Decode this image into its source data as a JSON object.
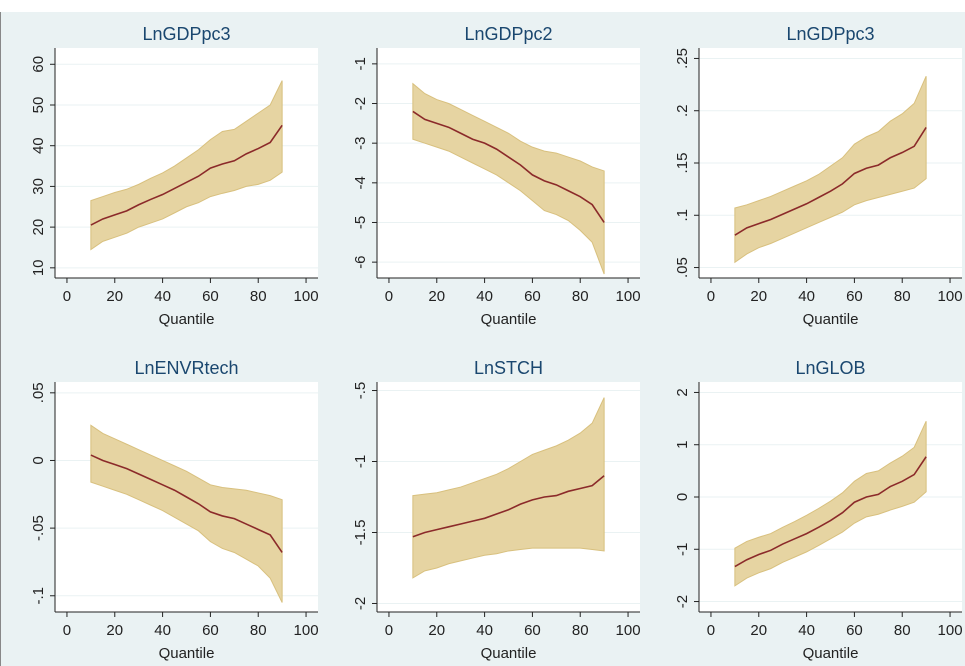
{
  "chart_data": [
    {
      "type": "band-line",
      "title": "LnGDPpc3",
      "xlabel": "Quantile",
      "x": [
        10,
        15,
        20,
        25,
        30,
        35,
        40,
        45,
        50,
        55,
        60,
        65,
        70,
        75,
        80,
        85,
        90
      ],
      "series": [
        {
          "color": "#8b2a2a",
          "values": [
            20.5,
            22,
            23,
            24,
            25.5,
            26.8,
            28,
            29.5,
            31,
            32.5,
            34.5,
            35.5,
            36.3,
            38,
            39.3,
            40.8,
            45
          ]
        }
      ],
      "band": {
        "color": "#e6d4a2",
        "upper": [
          26.5,
          27.5,
          28.5,
          29.3,
          30.5,
          32,
          33.3,
          35,
          37,
          39,
          41.5,
          43.5,
          44,
          46,
          48,
          50,
          56
        ],
        "lower": [
          14.5,
          16.5,
          17.5,
          18.5,
          20,
          21,
          22,
          23.5,
          25,
          26,
          27.5,
          28.3,
          29,
          30,
          30.5,
          31.5,
          33.5
        ]
      },
      "xlim": [
        -5,
        105
      ],
      "xticks": [
        0,
        20,
        40,
        60,
        80,
        100
      ],
      "ylim": [
        7.5,
        64
      ],
      "yticks": [
        10,
        20,
        30,
        40,
        50,
        60
      ],
      "grid": true
    },
    {
      "type": "band-line",
      "title": "LnGDPpc2",
      "xlabel": "Quantile",
      "x": [
        10,
        15,
        20,
        25,
        30,
        35,
        40,
        45,
        50,
        55,
        60,
        65,
        70,
        75,
        80,
        85,
        90
      ],
      "series": [
        {
          "color": "#8b2a2a",
          "values": [
            -2.2,
            -2.4,
            -2.5,
            -2.6,
            -2.75,
            -2.9,
            -3.0,
            -3.15,
            -3.35,
            -3.55,
            -3.8,
            -3.95,
            -4.05,
            -4.2,
            -4.35,
            -4.55,
            -5.0
          ]
        }
      ],
      "band": {
        "color": "#e6d4a2",
        "upper": [
          -1.5,
          -1.75,
          -1.9,
          -2.0,
          -2.15,
          -2.3,
          -2.45,
          -2.6,
          -2.75,
          -2.95,
          -3.1,
          -3.2,
          -3.25,
          -3.35,
          -3.45,
          -3.6,
          -3.7
        ],
        "lower": [
          -2.9,
          -3.0,
          -3.1,
          -3.2,
          -3.35,
          -3.5,
          -3.65,
          -3.8,
          -4.0,
          -4.2,
          -4.45,
          -4.7,
          -4.8,
          -4.95,
          -5.2,
          -5.5,
          -6.3
        ]
      },
      "xlim": [
        -5,
        105
      ],
      "xticks": [
        0,
        20,
        40,
        60,
        80,
        100
      ],
      "ylim": [
        -6.4,
        -0.6
      ],
      "yticks": [
        -6,
        -5,
        -4,
        -3,
        -2,
        -1
      ],
      "grid": true
    },
    {
      "type": "band-line",
      "title": "LnGDPpc3",
      "xlabel": "Quantile",
      "x": [
        10,
        15,
        20,
        25,
        30,
        35,
        40,
        45,
        50,
        55,
        60,
        65,
        70,
        75,
        80,
        85,
        90
      ],
      "series": [
        {
          "color": "#8b2a2a",
          "values": [
            0.081,
            0.088,
            0.092,
            0.096,
            0.101,
            0.106,
            0.111,
            0.117,
            0.123,
            0.13,
            0.14,
            0.145,
            0.148,
            0.155,
            0.16,
            0.166,
            0.184
          ]
        }
      ],
      "band": {
        "color": "#e6d4a2",
        "upper": [
          0.107,
          0.11,
          0.114,
          0.118,
          0.123,
          0.128,
          0.133,
          0.139,
          0.147,
          0.155,
          0.168,
          0.175,
          0.18,
          0.19,
          0.197,
          0.207,
          0.233
        ],
        "lower": [
          0.055,
          0.063,
          0.069,
          0.073,
          0.078,
          0.083,
          0.088,
          0.093,
          0.098,
          0.103,
          0.11,
          0.114,
          0.117,
          0.12,
          0.123,
          0.126,
          0.135
        ]
      },
      "xlim": [
        -5,
        105
      ],
      "xticks": [
        0,
        20,
        40,
        60,
        80,
        100
      ],
      "ylim": [
        0.04,
        0.26
      ],
      "yticks": [
        {
          "value": 0.05,
          "label": ".05"
        },
        {
          "value": 0.1,
          "label": ".1"
        },
        {
          "value": 0.15,
          "label": ".15"
        },
        {
          "value": 0.2,
          "label": ".2"
        },
        {
          "value": 0.25,
          "label": ".25"
        }
      ],
      "grid": true
    },
    {
      "type": "band-line",
      "title": "LnENVRtech",
      "xlabel": "Quantile",
      "x": [
        10,
        15,
        20,
        25,
        30,
        35,
        40,
        45,
        50,
        55,
        60,
        65,
        70,
        75,
        80,
        85,
        90
      ],
      "series": [
        {
          "color": "#8b2a2a",
          "values": [
            0.004,
            0,
            -0.003,
            -0.006,
            -0.01,
            -0.014,
            -0.018,
            -0.022,
            -0.027,
            -0.032,
            -0.038,
            -0.041,
            -0.043,
            -0.047,
            -0.051,
            -0.055,
            -0.068
          ]
        }
      ],
      "band": {
        "color": "#e6d4a2",
        "upper": [
          0.026,
          0.02,
          0.016,
          0.012,
          0.008,
          0.004,
          0,
          -0.004,
          -0.008,
          -0.013,
          -0.018,
          -0.02,
          -0.021,
          -0.022,
          -0.024,
          -0.026,
          -0.029
        ],
        "lower": [
          -0.016,
          -0.019,
          -0.022,
          -0.025,
          -0.029,
          -0.033,
          -0.037,
          -0.042,
          -0.047,
          -0.052,
          -0.06,
          -0.065,
          -0.068,
          -0.073,
          -0.078,
          -0.087,
          -0.105
        ]
      },
      "xlim": [
        -5,
        105
      ],
      "xticks": [
        0,
        20,
        40,
        60,
        80,
        100
      ],
      "ylim": [
        -0.112,
        0.058
      ],
      "yticks": [
        {
          "value": -0.1,
          "label": "-.1"
        },
        {
          "value": -0.05,
          "label": "-.05"
        },
        0,
        {
          "value": 0.05,
          "label": ".05"
        }
      ],
      "grid": true
    },
    {
      "type": "band-line",
      "title": "LnSTCH",
      "xlabel": "Quantile",
      "x": [
        10,
        15,
        20,
        25,
        30,
        35,
        40,
        45,
        50,
        55,
        60,
        65,
        70,
        75,
        80,
        85,
        90
      ],
      "series": [
        {
          "color": "#8b2a2a",
          "values": [
            -1.53,
            -1.5,
            -1.48,
            -1.46,
            -1.44,
            -1.42,
            -1.4,
            -1.37,
            -1.34,
            -1.3,
            -1.27,
            -1.25,
            -1.24,
            -1.21,
            -1.19,
            -1.17,
            -1.1
          ]
        }
      ],
      "band": {
        "color": "#e6d4a2",
        "upper": [
          -1.24,
          -1.23,
          -1.22,
          -1.2,
          -1.18,
          -1.15,
          -1.12,
          -1.09,
          -1.05,
          -1.0,
          -0.95,
          -0.92,
          -0.89,
          -0.85,
          -0.8,
          -0.73,
          -0.55
        ],
        "lower": [
          -1.82,
          -1.77,
          -1.75,
          -1.72,
          -1.7,
          -1.68,
          -1.66,
          -1.65,
          -1.63,
          -1.62,
          -1.61,
          -1.61,
          -1.61,
          -1.61,
          -1.61,
          -1.62,
          -1.63
        ]
      },
      "xlim": [
        -5,
        105
      ],
      "xticks": [
        0,
        20,
        40,
        60,
        80,
        100
      ],
      "ylim": [
        -2.06,
        -0.44
      ],
      "yticks": [
        -2,
        -1.5,
        -1,
        {
          "value": -0.5,
          "label": "-.5"
        }
      ],
      "grid": true
    },
    {
      "type": "band-line",
      "title": "LnGLOB",
      "xlabel": "Quantile",
      "x": [
        10,
        15,
        20,
        25,
        30,
        35,
        40,
        45,
        50,
        55,
        60,
        65,
        70,
        75,
        80,
        85,
        90
      ],
      "series": [
        {
          "color": "#8b2a2a",
          "values": [
            -1.33,
            -1.2,
            -1.1,
            -1.02,
            -0.9,
            -0.8,
            -0.7,
            -0.58,
            -0.45,
            -0.3,
            -0.1,
            0,
            0.05,
            0.2,
            0.3,
            0.43,
            0.77
          ]
        }
      ],
      "band": {
        "color": "#e6d4a2",
        "upper": [
          -0.98,
          -0.85,
          -0.77,
          -0.7,
          -0.58,
          -0.47,
          -0.35,
          -0.22,
          -0.08,
          0.08,
          0.3,
          0.45,
          0.5,
          0.65,
          0.78,
          0.95,
          1.45
        ],
        "lower": [
          -1.7,
          -1.55,
          -1.45,
          -1.37,
          -1.25,
          -1.15,
          -1.05,
          -0.93,
          -0.8,
          -0.67,
          -0.5,
          -0.38,
          -0.33,
          -0.25,
          -0.18,
          -0.1,
          0.1
        ]
      },
      "xlim": [
        -5,
        105
      ],
      "xticks": [
        0,
        20,
        40,
        60,
        80,
        100
      ],
      "ylim": [
        -2.2,
        2.2
      ],
      "yticks": [
        -2,
        -1,
        0,
        1,
        2
      ],
      "grid": true
    }
  ]
}
